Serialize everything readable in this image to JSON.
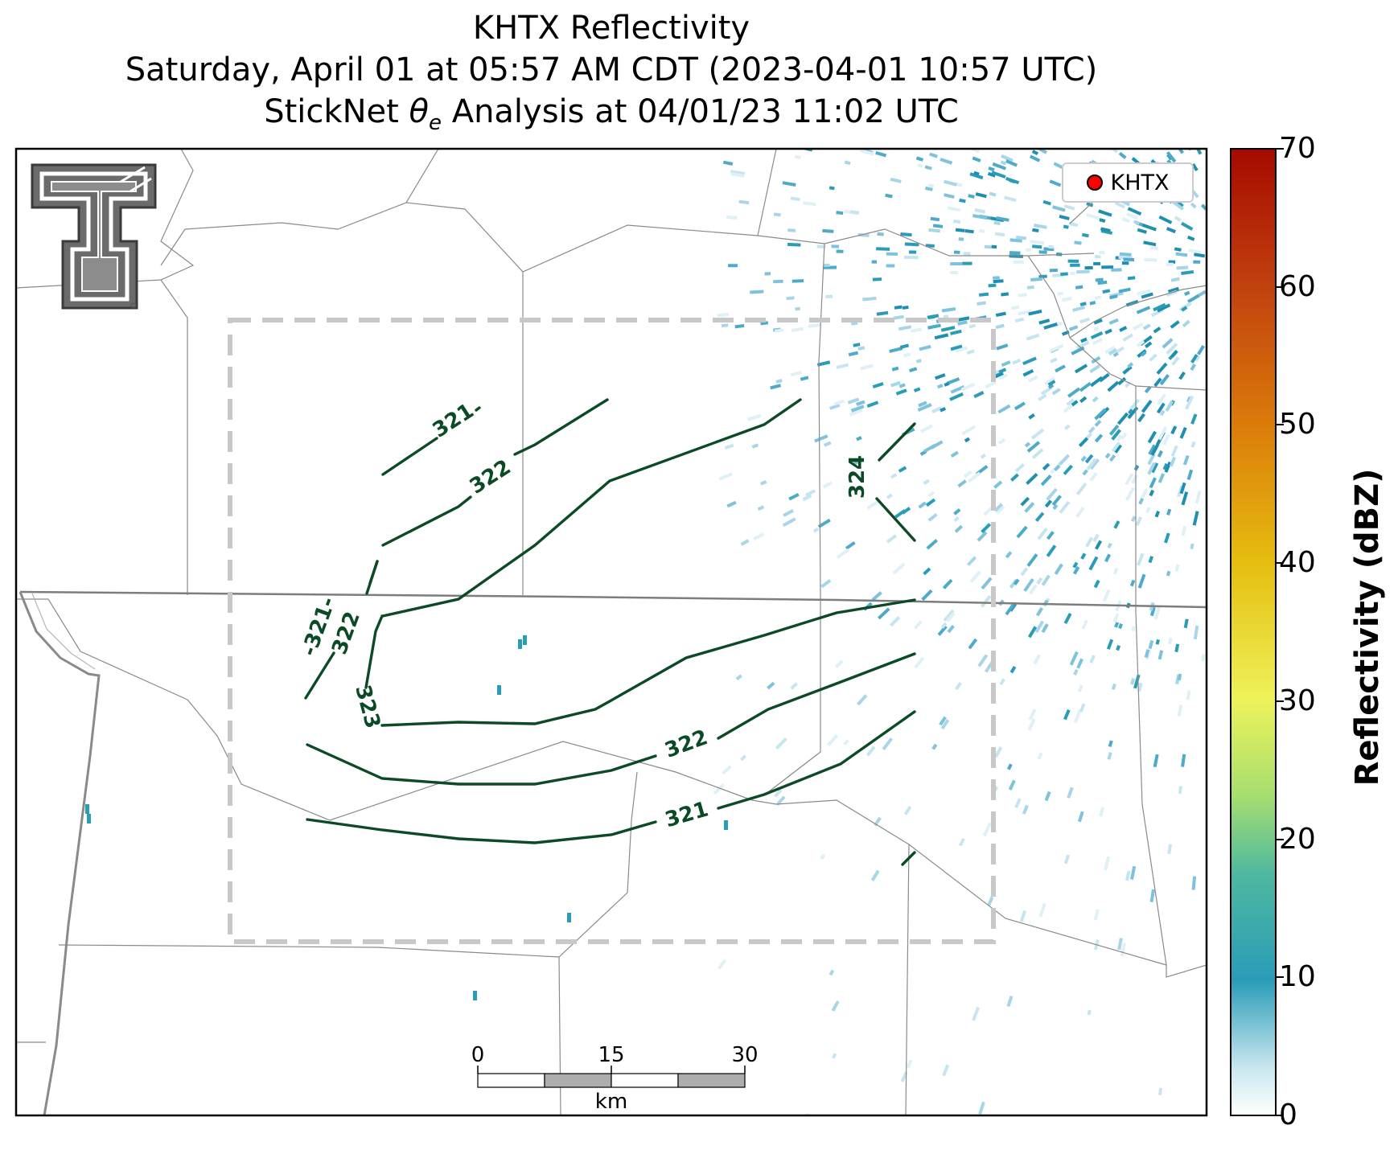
{
  "title": {
    "line1": "KHTX Reflectivity",
    "line2": "Saturday, April 01 at 05:57 AM CDT (2023-04-01 10:57 UTC)",
    "line3_prefix": "StickNet ",
    "line3_symbol": "θ",
    "line3_subscript": "e",
    "line3_suffix": " Analysis at 04/01/23 11:02 UTC"
  },
  "legend": {
    "marker_label": "KHTX",
    "marker_color": "#ff0000"
  },
  "colorbar": {
    "label": "Reflectivity (dBZ)",
    "ticks": [
      "0",
      "10",
      "20",
      "30",
      "40",
      "50",
      "60",
      "70"
    ],
    "range": [
      0,
      70
    ],
    "colors": [
      "#ffffff",
      "#9fd0e4",
      "#2a9cb8",
      "#5dc191",
      "#b9ea6a",
      "#f0f04a",
      "#e8c20c",
      "#de8a0a",
      "#c94a0c",
      "#aa0a00"
    ]
  },
  "scalebar": {
    "ticks": [
      "0",
      "15",
      "30"
    ],
    "unit": "km"
  },
  "contour_labels": [
    "321",
    "322",
    "324",
    "-321-",
    "322",
    "323",
    "322",
    "321"
  ],
  "logo": {
    "alt": "Texas Tech Double T"
  },
  "contour_color": "#0b4a24",
  "analysis_box_color": "#c8c8c8"
}
